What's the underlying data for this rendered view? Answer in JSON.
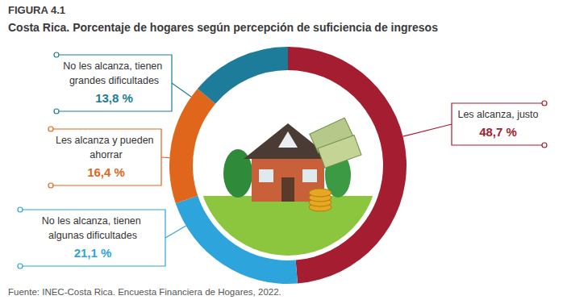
{
  "chart_data": {
    "type": "pie",
    "title": "FIGURA 4.1",
    "subtitle": "Costa Rica. Porcentaje de hogares según percepción de suficiencia de ingresos",
    "source": "Fuente: INEC-Costa Rica. Encuesta Financiera de Hogares, 2022.",
    "categories": [
      "Les alcanza, justo",
      "No les alcanza, tienen algunas dificultades",
      "Les alcanza y pueden ahorrar",
      "No les alcanza, tienen grandes dificultades"
    ],
    "values": [
      48.7,
      21.1,
      16.4,
      13.8
    ],
    "value_labels": [
      "48,7 %",
      "21,1 %",
      "16,4 %",
      "13,8 %"
    ],
    "colors": [
      "#a51d30",
      "#2ea4dc",
      "#e0661c",
      "#1c7c99"
    ],
    "data_labels": true
  }
}
